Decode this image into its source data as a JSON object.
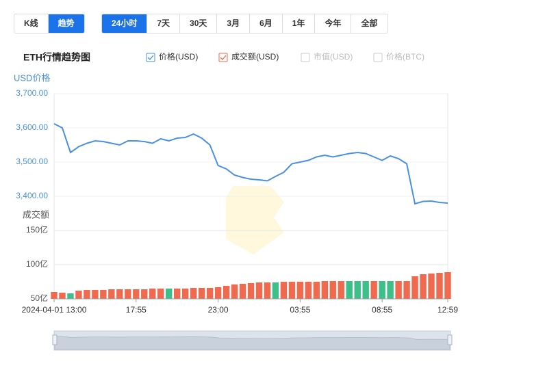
{
  "tabs": {
    "views": [
      "K线",
      "趋势"
    ],
    "active_view": 1,
    "ranges": [
      "24小时",
      "7天",
      "30天",
      "3月",
      "6月",
      "1年",
      "今年",
      "全部"
    ],
    "active_range": 0
  },
  "legend_items": [
    {
      "label": "价格(USD)",
      "checked": true,
      "color": "#4a90e2"
    },
    {
      "label": "成交额(USD)",
      "checked": true,
      "color": "#f06a4f"
    },
    {
      "label": "市值(USD)",
      "checked": false,
      "color": "#cccccc"
    },
    {
      "label": "价格(BTC)",
      "checked": false,
      "color": "#cccccc"
    }
  ],
  "chart_data": {
    "type": "line",
    "title": "ETH行情趋势图",
    "y_label": "USD价格",
    "y2_label": "成交额",
    "categories": [
      "2024-04-01 13:00",
      null,
      null,
      null,
      null,
      null,
      null,
      null,
      null,
      null,
      "17:55",
      null,
      null,
      null,
      null,
      null,
      null,
      null,
      null,
      null,
      "23:00",
      null,
      null,
      null,
      null,
      null,
      null,
      null,
      null,
      null,
      "03:55",
      null,
      null,
      null,
      null,
      null,
      null,
      null,
      null,
      null,
      "08:55",
      null,
      null,
      null,
      null,
      null,
      null,
      null,
      "12:59"
    ],
    "ylim": [
      3300,
      3700
    ],
    "yticks": [
      {
        "value": 3700,
        "label": "3,700.00"
      },
      {
        "value": 3600,
        "label": "3,600.00"
      },
      {
        "value": 3500,
        "label": "3,500.00"
      },
      {
        "value": 3400,
        "label": "3,400.00"
      }
    ],
    "y2lim": [
      50,
      150
    ],
    "y2ticks": [
      {
        "value": 150,
        "label": "150亿"
      },
      {
        "value": 100,
        "label": "100亿"
      },
      {
        "value": 50,
        "label": "50亿"
      }
    ],
    "grid": true,
    "series": [
      {
        "name": "价格(USD)",
        "color": "#4a90e2",
        "values": [
          3612,
          3600,
          3528,
          3545,
          3555,
          3562,
          3560,
          3555,
          3550,
          3562,
          3562,
          3560,
          3555,
          3568,
          3562,
          3570,
          3572,
          3582,
          3570,
          3550,
          3490,
          3480,
          3462,
          3455,
          3450,
          3448,
          3445,
          3458,
          3470,
          3495,
          3500,
          3505,
          3515,
          3520,
          3515,
          3520,
          3525,
          3528,
          3525,
          3515,
          3505,
          3518,
          3510,
          3495,
          3378,
          3385,
          3386,
          3382,
          3380
        ]
      },
      {
        "name": "成交额(USD)",
        "type": "bar",
        "axis": "y2",
        "colors": [
          "#f06a4f",
          "#f06a4f",
          "#3dbf8a",
          "#f06a4f",
          "#f06a4f",
          "#f06a4f",
          "#f06a4f",
          "#f06a4f",
          "#f06a4f",
          "#f06a4f",
          "#f06a4f",
          "#f06a4f",
          "#f06a4f",
          "#f06a4f",
          "#3dbf8a",
          "#f06a4f",
          "#f06a4f",
          "#f06a4f",
          "#f06a4f",
          "#f06a4f",
          "#f06a4f",
          "#f06a4f",
          "#f06a4f",
          "#f06a4f",
          "#f06a4f",
          "#f06a4f",
          "#f06a4f",
          "#3dbf8a",
          "#f06a4f",
          "#f06a4f",
          "#f06a4f",
          "#f06a4f",
          "#f06a4f",
          "#f06a4f",
          "#f06a4f",
          "#f06a4f",
          "#3dbf8a",
          "#3dbf8a",
          "#3dbf8a",
          "#f06a4f",
          "#3dbf8a",
          "#3dbf8a",
          "#f06a4f",
          "#f06a4f",
          "#f06a4f",
          "#f06a4f",
          "#f06a4f",
          "#f06a4f",
          "#f06a4f"
        ],
        "values": [
          60,
          59,
          58,
          62,
          63,
          63,
          63,
          64,
          64,
          64,
          64,
          64,
          65,
          65,
          65,
          65,
          65,
          66,
          66,
          66,
          67,
          69,
          71,
          72,
          73,
          74,
          74,
          74,
          75,
          75,
          75,
          75,
          75,
          76,
          76,
          76,
          76,
          76,
          76,
          76,
          76,
          76,
          76,
          76,
          83,
          86,
          87,
          88,
          89
        ]
      }
    ]
  }
}
